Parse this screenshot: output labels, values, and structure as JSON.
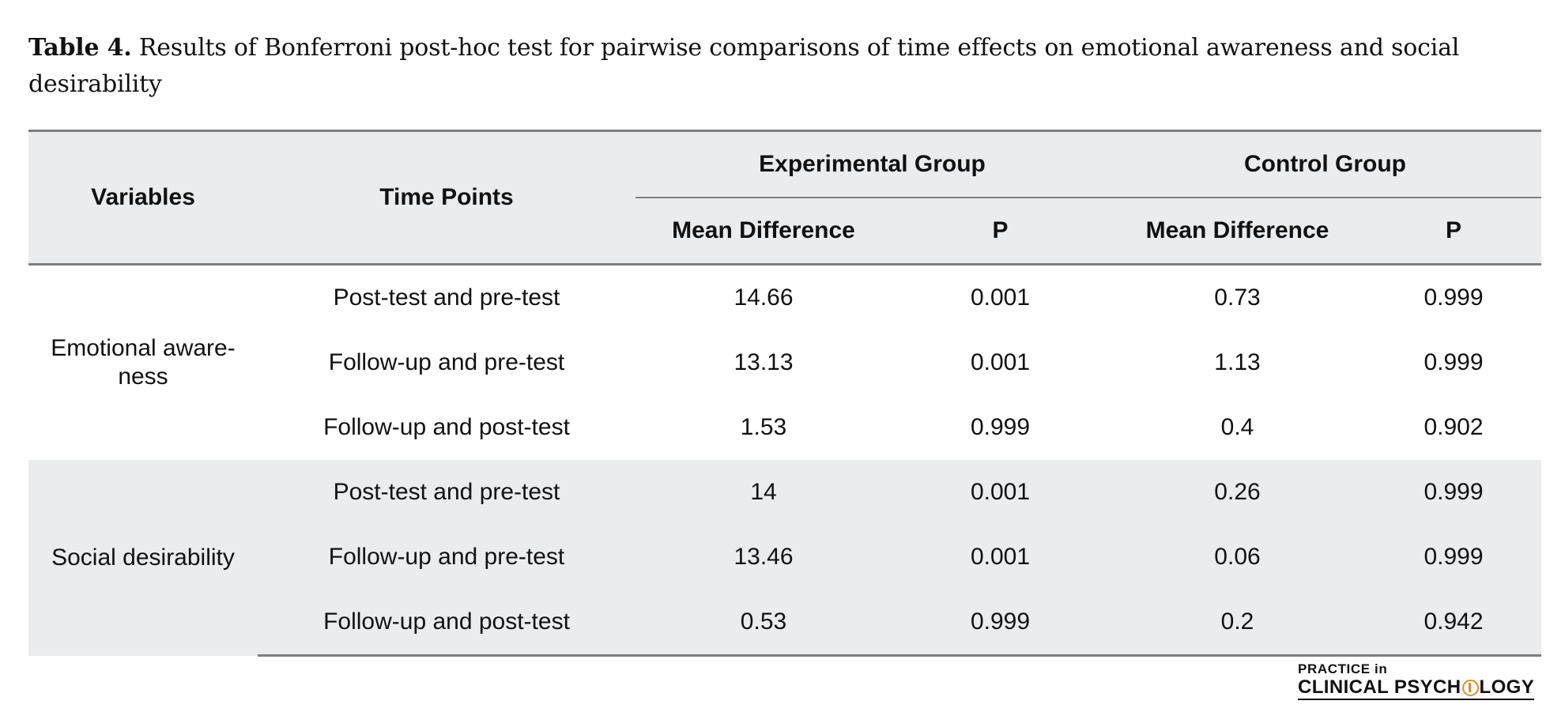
{
  "caption": {
    "label": "Table 4.",
    "text": "Results of Bonferroni post-hoc test for pairwise comparisons of time effects on emotional awareness and social desirability"
  },
  "table": {
    "headers": {
      "variables": "Variables",
      "time_points": "Time Points",
      "experimental_group": "Experimental Group",
      "control_group": "Control Group",
      "exp_mean_difference": "Mean Difference",
      "exp_p": "P",
      "ctrl_mean_difference": "Mean Difference",
      "ctrl_p": "P"
    },
    "groups": [
      {
        "variable": "Emotional aware-ness",
        "rows": [
          {
            "time_points": "Post-test and pre-test",
            "exp_md": "14.66",
            "exp_p": "0.001",
            "ctrl_md": "0.73",
            "ctrl_p": "0.999"
          },
          {
            "time_points": "Follow-up and pre-test",
            "exp_md": "13.13",
            "exp_p": "0.001",
            "ctrl_md": "1.13",
            "ctrl_p": "0.999"
          },
          {
            "time_points": "Follow-up and post-test",
            "exp_md": "1.53",
            "exp_p": "0.999",
            "ctrl_md": "0.4",
            "ctrl_p": "0.902"
          }
        ]
      },
      {
        "variable": "Social desirability",
        "rows": [
          {
            "time_points": "Post-test and pre-test",
            "exp_md": "14",
            "exp_p": "0.001",
            "ctrl_md": "0.26",
            "ctrl_p": "0.999"
          },
          {
            "time_points": "Follow-up and pre-test",
            "exp_md": "13.46",
            "exp_p": "0.001",
            "ctrl_md": "0.06",
            "ctrl_p": "0.999"
          },
          {
            "time_points": "Follow-up and post-test",
            "exp_md": "0.53",
            "exp_p": "0.999",
            "ctrl_md": "0.2",
            "ctrl_p": "0.942"
          }
        ]
      }
    ]
  },
  "logo": {
    "line1": "PRACTICE in",
    "line2_before": "CLINICAL PSYCH",
    "line2_after": "LOGY"
  }
}
